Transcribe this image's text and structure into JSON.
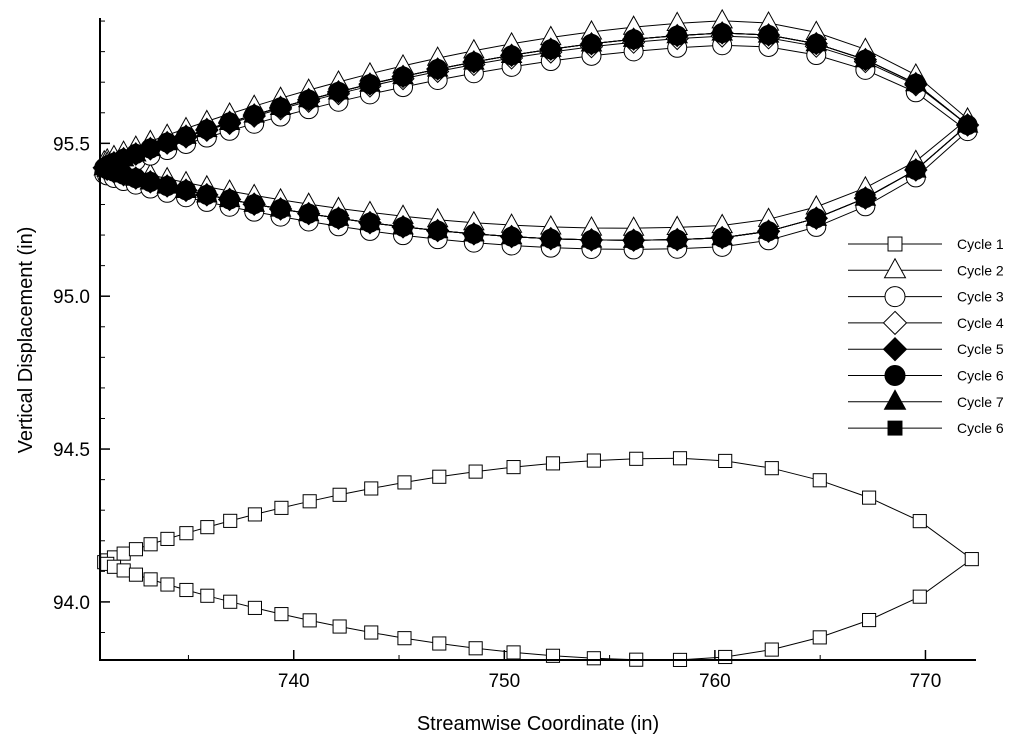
{
  "chart_data": {
    "type": "scatter",
    "title": "",
    "xlabel": "Streamwise Coordinate (in)",
    "ylabel": "Vertical Displacement (in)",
    "xlim": [
      730.8,
      772.4
    ],
    "ylim": [
      93.81,
      95.91
    ],
    "xticks": [
      740,
      750,
      760,
      770
    ],
    "yticks": [
      94.0,
      94.5,
      95.0,
      95.5
    ],
    "ytick_labels": [
      "94.0",
      "94.5",
      "95.0",
      "95.5"
    ],
    "grid": false,
    "legend_position": "right",
    "series_shape": "closed elliptical loop of airfoil surface points per cycle",
    "series": [
      {
        "name": "Cycle 1",
        "marker": "square-open",
        "x_lead": 731.0,
        "x_trail": 772.2,
        "y_lead": 94.13,
        "y_trail": 94.14,
        "y_upper_max": 94.47,
        "y_lower_min": 93.81,
        "x_at_extreme": 758.0
      },
      {
        "name": "Cycle 2",
        "marker": "triangle-open",
        "x_lead": 731.0,
        "x_trail": 772.0,
        "y_lead": 95.44,
        "y_trail": 95.58,
        "y_upper_max": 95.9,
        "y_lower_min": 95.23,
        "x_at_extreme": 760.0
      },
      {
        "name": "Cycle 3",
        "marker": "circle-open",
        "x_lead": 731.0,
        "x_trail": 772.0,
        "y_lead": 95.4,
        "y_trail": 95.54,
        "y_upper_max": 95.82,
        "y_lower_min": 95.16,
        "x_at_extreme": 760.0
      },
      {
        "name": "Cycle 4",
        "marker": "diamond-open",
        "x_lead": 731.0,
        "x_trail": 772.0,
        "y_lead": 95.42,
        "y_trail": 95.56,
        "y_upper_max": 95.85,
        "y_lower_min": 95.19,
        "x_at_extreme": 760.0
      },
      {
        "name": "Cycle 5",
        "marker": "diamond-filled",
        "x_lead": 731.0,
        "x_trail": 772.0,
        "y_lead": 95.42,
        "y_trail": 95.56,
        "y_upper_max": 95.86,
        "y_lower_min": 95.19,
        "x_at_extreme": 760.0
      },
      {
        "name": "Cycle 6",
        "marker": "circle-filled",
        "x_lead": 731.0,
        "x_trail": 772.0,
        "y_lead": 95.42,
        "y_trail": 95.56,
        "y_upper_max": 95.86,
        "y_lower_min": 95.19,
        "x_at_extreme": 760.0
      },
      {
        "name": "Cycle 7",
        "marker": "triangle-filled",
        "x_lead": 731.0,
        "x_trail": 772.0,
        "y_lead": 95.42,
        "y_trail": 95.56,
        "y_upper_max": 95.86,
        "y_lower_min": 95.19,
        "x_at_extreme": 760.0
      },
      {
        "name": "Cycle 6",
        "marker": "square-filled",
        "x_lead": 731.0,
        "x_trail": 772.0,
        "y_lead": 95.42,
        "y_trail": 95.56,
        "y_upper_max": 95.86,
        "y_lower_min": 95.19,
        "x_at_extreme": 760.0
      }
    ]
  }
}
